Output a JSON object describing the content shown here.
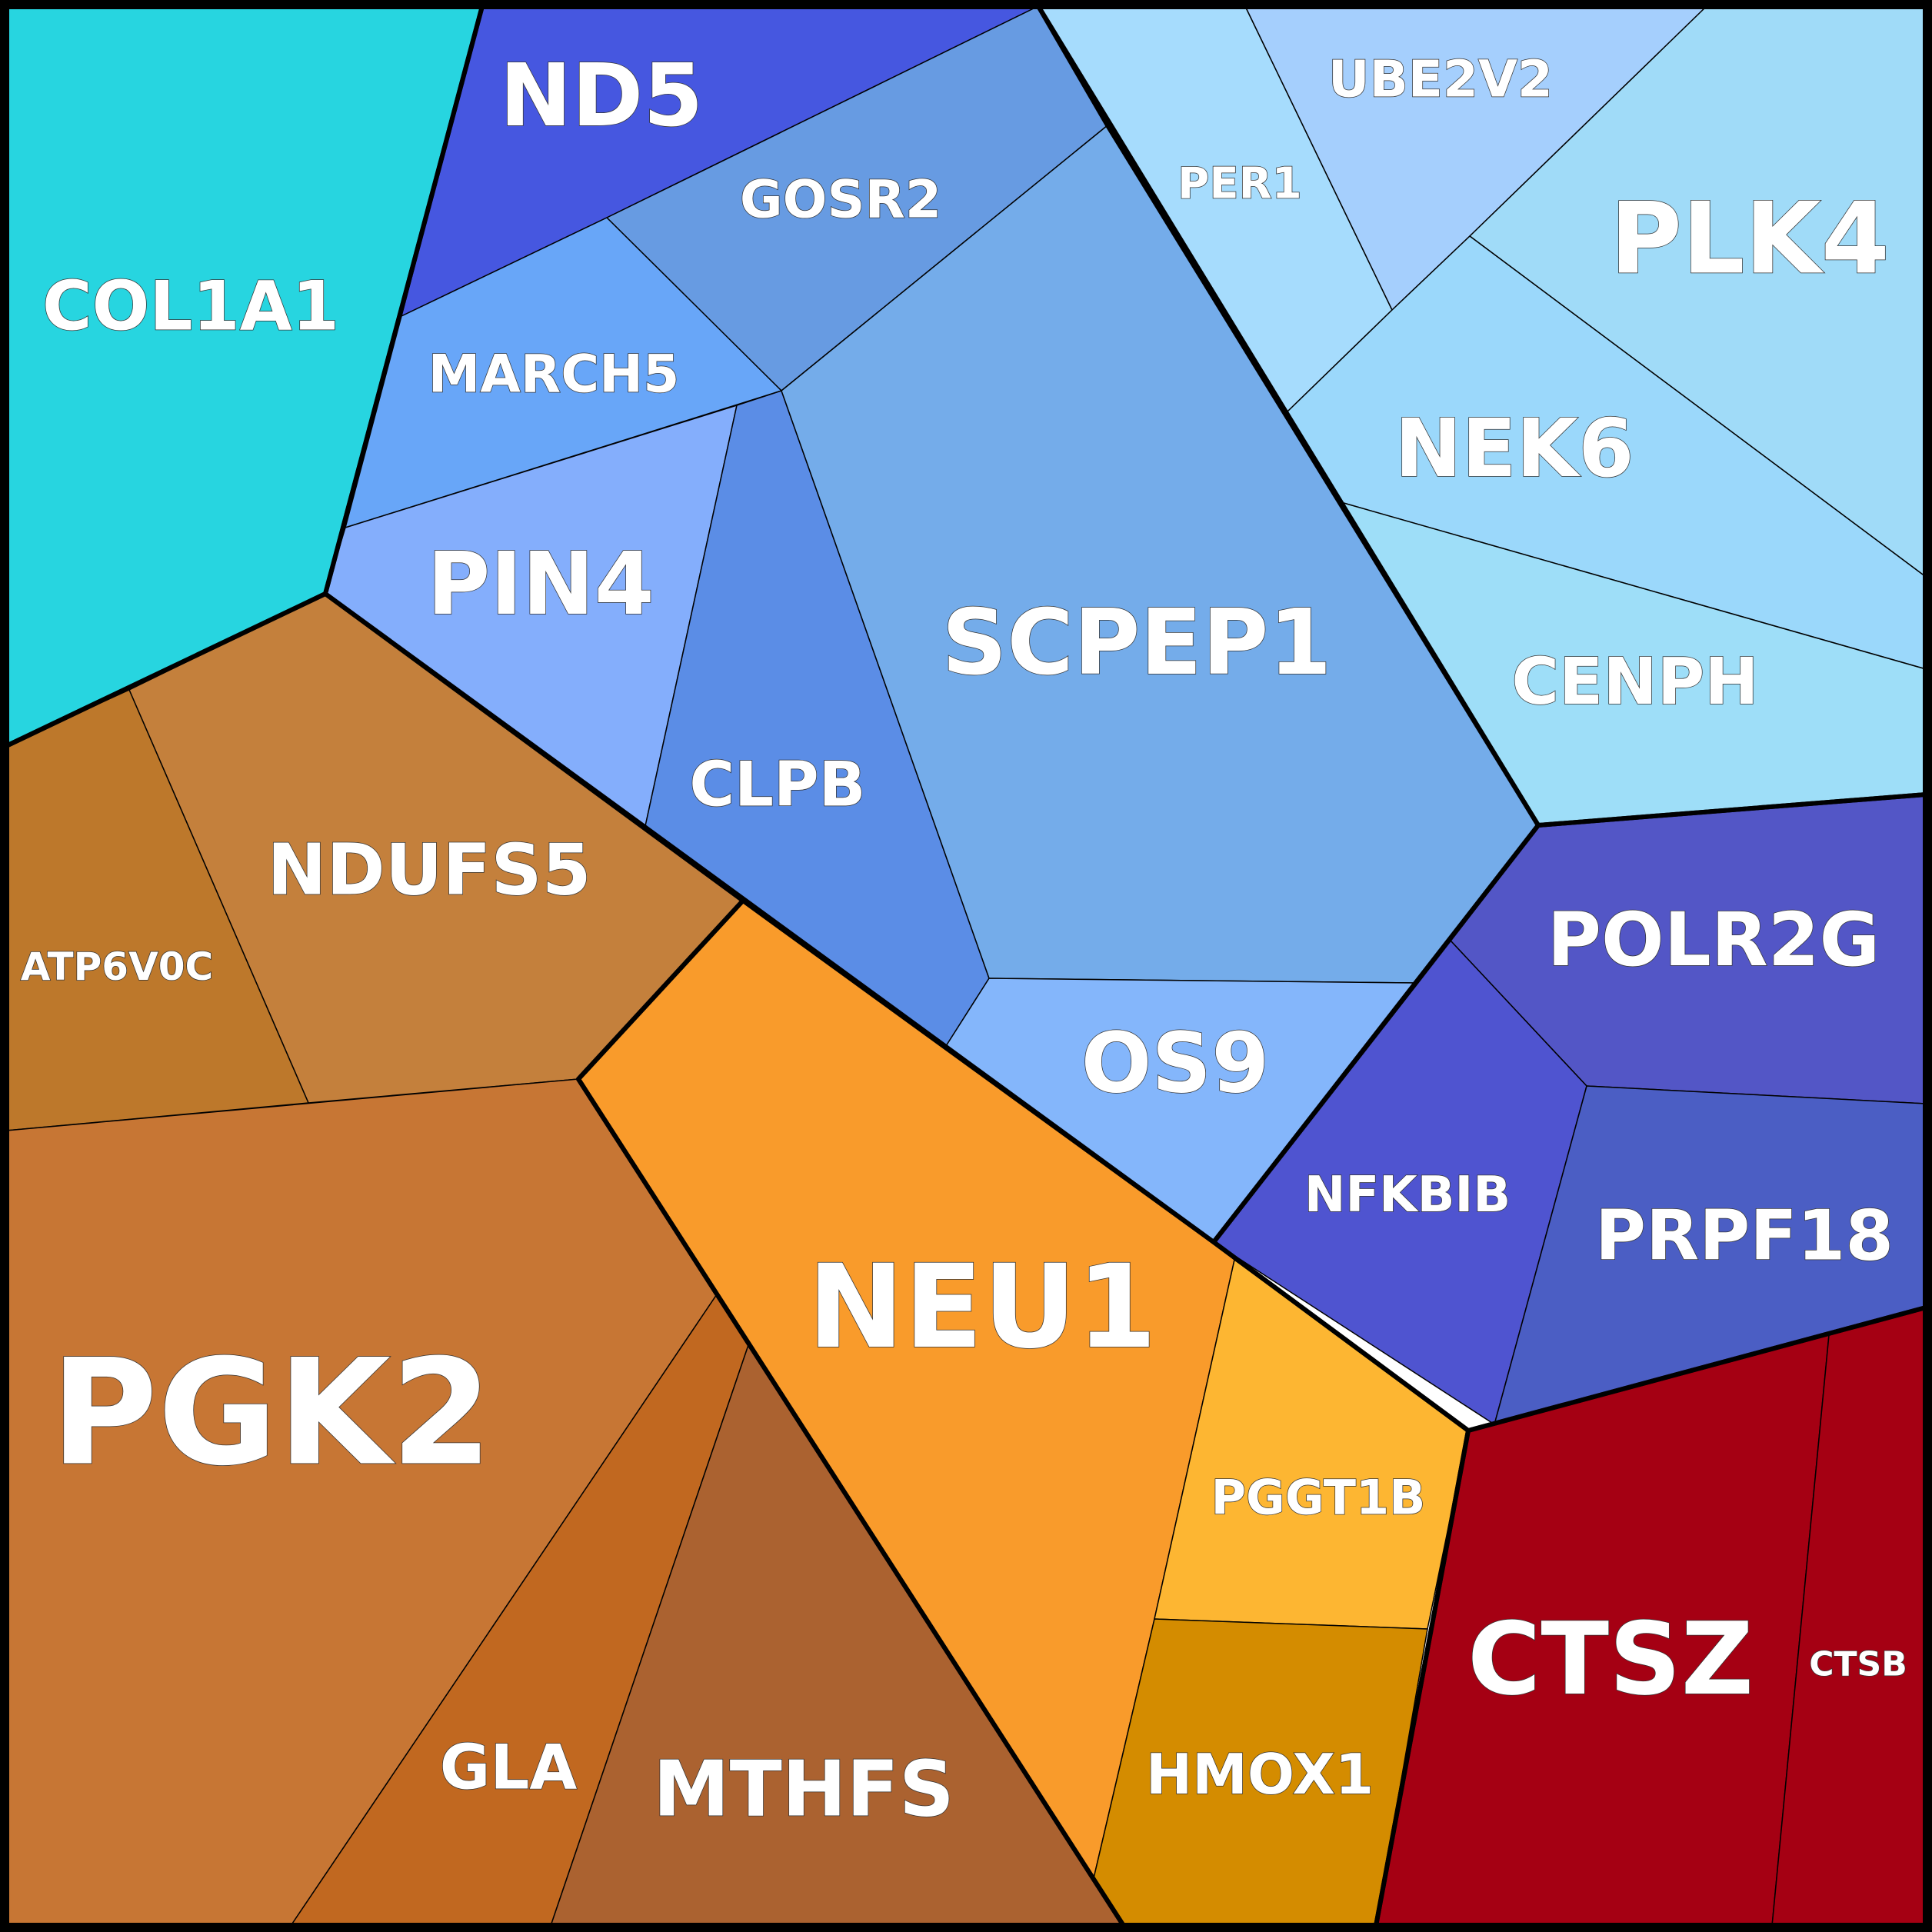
{
  "chart_data": {
    "type": "voronoi-treemap",
    "groups": [
      {
        "name": "",
        "color": "#27d5e0",
        "cells": [
          {
            "label": "COL1A1",
            "color": "#27d5e0"
          }
        ]
      },
      {
        "name": "",
        "color": "#6aa0ef",
        "cells": [
          {
            "label": "ND5",
            "color": "#4657e0"
          },
          {
            "label": "GOSR2",
            "color": "#679be2"
          },
          {
            "label": "MARCH5",
            "color": "#68a6f8"
          },
          {
            "label": "PIN4",
            "color": "#84aefc"
          },
          {
            "label": "CLPB",
            "color": "#5b8de6"
          },
          {
            "label": "SCPEP1",
            "color": "#74acea"
          },
          {
            "label": "OS9",
            "color": "#84b6fb"
          }
        ]
      },
      {
        "name": "",
        "color": "#a0dbf8",
        "cells": [
          {
            "label": "PER1",
            "color": "#a6dcfd"
          },
          {
            "label": "UBE2V2",
            "color": "#a5cffd"
          },
          {
            "label": "PLK4",
            "color": "#a0dbf8"
          },
          {
            "label": "NEK6",
            "color": "#9bd8fb"
          },
          {
            "label": "CENPH",
            "color": "#9edef8"
          }
        ]
      },
      {
        "name": "",
        "color": "#5156c9",
        "cells": [
          {
            "label": "POLR2G",
            "color": "#5356c6"
          },
          {
            "label": "NFKBIB",
            "color": "#4f54d0"
          },
          {
            "label": "PRPF18",
            "color": "#4b5ec4"
          }
        ]
      },
      {
        "name": "",
        "color": "#c47a35",
        "cells": [
          {
            "label": "NDUFS5",
            "color": "#c4803c"
          },
          {
            "label": "ATP6V0C",
            "color": "#bd782b"
          },
          {
            "label": "PGK2",
            "color": "#c77634"
          },
          {
            "label": "GLA",
            "color": "#c16820"
          },
          {
            "label": "MTHFS",
            "color": "#ab6230"
          }
        ]
      },
      {
        "name": "",
        "color": "#f99b2b",
        "cells": [
          {
            "label": "NEU1",
            "color": "#f99b2b"
          },
          {
            "label": "PGGT1B",
            "color": "#fdb632"
          },
          {
            "label": "HMOX1",
            "color": "#d48c00"
          }
        ]
      },
      {
        "name": "",
        "color": "#a50013",
        "cells": [
          {
            "label": "CTSZ",
            "color": "#a50013"
          },
          {
            "label": "CTSB",
            "color": "#a50013"
          }
        ]
      }
    ]
  }
}
